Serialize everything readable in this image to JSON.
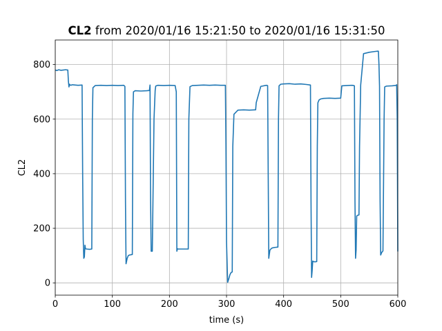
{
  "chart_data": {
    "type": "line",
    "title_bold": "CL2",
    "title_rest": " from 2020/01/16 15:21:50 to 2020/01/16 15:31:50",
    "xlabel": "time (s)",
    "ylabel": "CL2",
    "xlim": [
      0,
      600
    ],
    "ylim": [
      -45,
      890
    ],
    "grid": true,
    "line_color": "#1f77b4",
    "xticks": [
      0,
      100,
      200,
      300,
      400,
      500,
      600
    ],
    "yticks": [
      0,
      200,
      400,
      600,
      800
    ],
    "xtick_labels": [
      "0",
      "100",
      "200",
      "300",
      "400",
      "500",
      "600"
    ],
    "ytick_labels": [
      "0",
      "200",
      "400",
      "600",
      "800"
    ],
    "series": [
      {
        "x": [
          0,
          3,
          6,
          10,
          14,
          18,
          22,
          23,
          24,
          25,
          26,
          27,
          30,
          35,
          40,
          47,
          48,
          49,
          50,
          51,
          52,
          53,
          55,
          60,
          64,
          65,
          66,
          70,
          80,
          90,
          100,
          110,
          120,
          122,
          123,
          124,
          125,
          126,
          127,
          128,
          130,
          135,
          136,
          137,
          140,
          150,
          160,
          165,
          166,
          167,
          168,
          169,
          170,
          173,
          175,
          176,
          178,
          180,
          190,
          200,
          210,
          212,
          213,
          214,
          215,
          218,
          225,
          233,
          234,
          236,
          240,
          250,
          260,
          270,
          280,
          290,
          298,
          299,
          300,
          302,
          304,
          306,
          308,
          310,
          311,
          313,
          320,
          330,
          340,
          350,
          351,
          352,
          360,
          370,
          372,
          373,
          374,
          375,
          376,
          378,
          380,
          385,
          390,
          391,
          392,
          395,
          400,
          410,
          420,
          430,
          440,
          447,
          448,
          449,
          450,
          451,
          452,
          455,
          458,
          459,
          460,
          462,
          465,
          470,
          480,
          490,
          500,
          501,
          502,
          510,
          520,
          523,
          524,
          525,
          526,
          527,
          528,
          530,
          532,
          533,
          535,
          540,
          550,
          560,
          565,
          566,
          567,
          568,
          569,
          570,
          572,
          574,
          576,
          577,
          580,
          590,
          595,
          597,
          598,
          599,
          600
        ],
        "y": [
          780,
          778,
          781,
          779,
          780,
          781,
          780,
          740,
          718,
          728,
          725,
          724,
          726,
          725,
          724,
          725,
          400,
          160,
          90,
          95,
          138,
          125,
          124,
          123,
          124,
          600,
          715,
          723,
          724,
          723,
          724,
          723,
          724,
          720,
          300,
          70,
          80,
          90,
          95,
          100,
          102,
          104,
          620,
          700,
          704,
          703,
          704,
          705,
          725,
          300,
          116,
          116,
          116,
          600,
          705,
          721,
          723,
          724,
          723,
          724,
          723,
          700,
          116,
          125,
          124,
          124,
          124,
          124,
          600,
          719,
          723,
          724,
          725,
          724,
          725,
          724,
          724,
          500,
          150,
          2,
          15,
          30,
          38,
          40,
          500,
          618,
          633,
          634,
          633,
          634,
          634,
          660,
          720,
          724,
          723,
          400,
          90,
          105,
          120,
          125,
          128,
          130,
          131,
          600,
          722,
          728,
          729,
          730,
          728,
          729,
          727,
          725,
          300,
          20,
          45,
          80,
          78,
          77,
          78,
          500,
          660,
          670,
          674,
          676,
          677,
          676,
          677,
          700,
          722,
          723,
          724,
          723,
          722,
          300,
          90,
          120,
          245,
          248,
          249,
          500,
          725,
          840,
          845,
          848,
          849,
          849,
          800,
          720,
          300,
          102,
          112,
          117,
          600,
          718,
          721,
          722,
          723,
          724,
          726,
          600,
          115
        ]
      }
    ]
  }
}
